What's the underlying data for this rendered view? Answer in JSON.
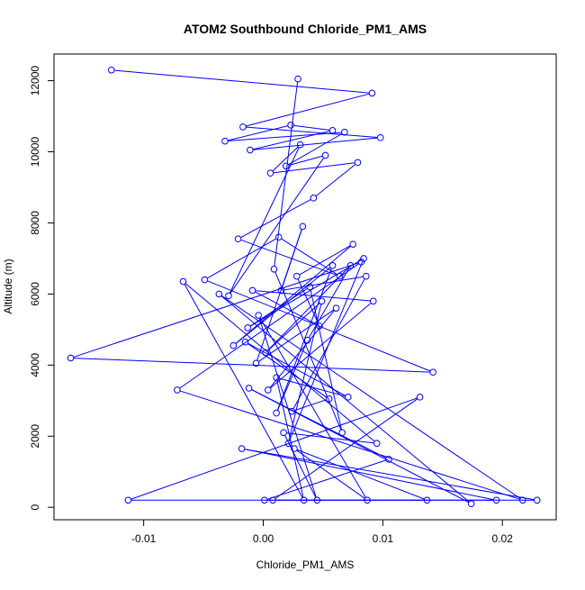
{
  "chart_data": {
    "type": "line",
    "title": "ATOM2 Southbound Chloride_PM1_AMS",
    "xlabel": "Chloride_PM1_AMS",
    "ylabel": "Altitude (m)",
    "xlim": [
      -0.0175,
      0.0245
    ],
    "ylim": [
      -350,
      12750
    ],
    "x_ticks": [
      {
        "value": -0.01,
        "label": "-0.01"
      },
      {
        "value": 0.0,
        "label": "0.00"
      },
      {
        "value": 0.01,
        "label": "0.01"
      },
      {
        "value": 0.02,
        "label": "0.02"
      }
    ],
    "y_ticks": [
      {
        "value": 0,
        "label": "0"
      },
      {
        "value": 2000,
        "label": "2000"
      },
      {
        "value": 4000,
        "label": "4000"
      },
      {
        "value": 6000,
        "label": "6000"
      },
      {
        "value": 8000,
        "label": "8000"
      },
      {
        "value": 10000,
        "label": "10000"
      },
      {
        "value": 12000,
        "label": "12000"
      }
    ],
    "grid": false,
    "legend": "none",
    "line_color": "#0000ff",
    "marker": "open-circle",
    "series": [
      {
        "x": [
          -0.0127,
          0.0091,
          -0.0017,
          0.0098,
          -0.0011,
          0.0058,
          0.0023,
          -0.0032,
          0.0068,
          0.0019,
          0.0052,
          -0.0029,
          0.0031,
          0.0006,
          0.0079,
          0.0042,
          -0.0021,
          0.0064,
          0.0013,
          -0.0049,
          0.0142,
          -0.0161,
          0.0082,
          -0.0072,
          0.0217,
          -0.0037,
          0.0174,
          -0.0012,
          0.0105,
          0.0001,
          0.0229,
          -0.0018,
          0.0195,
          -0.0113,
          0.0131,
          0.0008,
          0.0137,
          0.0026,
          0.0087,
          -0.0004,
          0.0045,
          0.0017,
          0.0095,
          -0.0067,
          0.0034,
          0.0011,
          0.0071,
          -0.0015,
          0.0055,
          0.0024,
          0.0086,
          0.0015,
          0.0033,
          -0.0006,
          0.0061,
          0.0004,
          0.0092,
          -0.0009,
          0.0047,
          0.0028,
          0.0075,
          -0.0025,
          0.0058,
          0.0011,
          0.0037,
          0.0073,
          0.0002,
          0.0049,
          0.0021,
          0.0084,
          -0.0013,
          0.0039,
          0.0066,
          0.0009,
          0.0029
        ],
        "y": [
          12300,
          11650,
          10700,
          10400,
          10050,
          10600,
          10750,
          10300,
          10550,
          9600,
          9900,
          5950,
          10200,
          9400,
          9700,
          8700,
          7550,
          6500,
          7600,
          6400,
          3800,
          4200,
          6900,
          3300,
          200,
          6000,
          100,
          3350,
          1350,
          200,
          200,
          1650,
          200,
          200,
          3100,
          200,
          200,
          1650,
          200,
          5400,
          200,
          2100,
          1800,
          6350,
          200,
          3650,
          3100,
          4650,
          3050,
          2700,
          6500,
          6100,
          7900,
          4050,
          5600,
          3300,
          5800,
          6100,
          5100,
          6500,
          7400,
          4550,
          6800,
          2650,
          4700,
          6800,
          4350,
          5800,
          1800,
          7000,
          5050,
          6200,
          2100,
          6700,
          12050
        ]
      }
    ]
  }
}
